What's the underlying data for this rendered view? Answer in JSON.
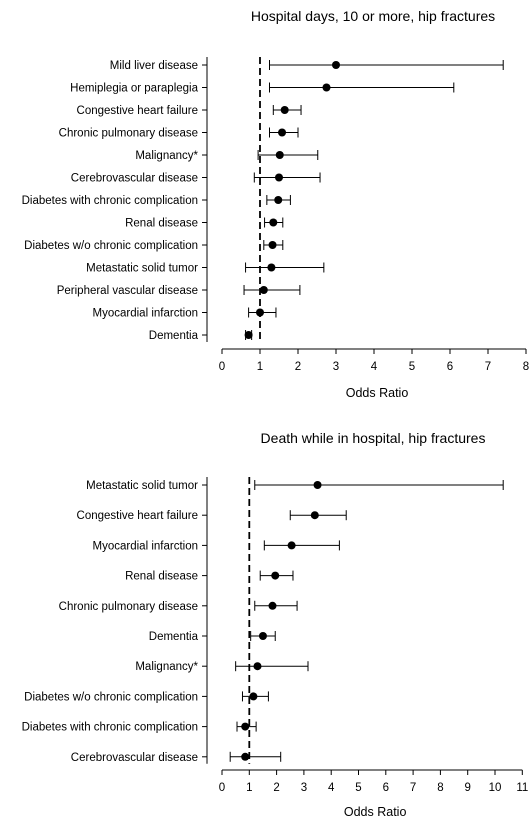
{
  "chart_data": [
    {
      "type": "scatter",
      "title": "Hospital days, 10 or more, hip fractures",
      "xlabel": "Odds Ratio",
      "ylabel": "",
      "xlim": [
        0,
        8
      ],
      "xticks": [
        0,
        1,
        2,
        3,
        4,
        5,
        6,
        7,
        8
      ],
      "reference_line": 1,
      "grid": false,
      "legend": "none",
      "categories": [
        "Mild liver disease",
        "Hemiplegia or paraplegia",
        "Congestive heart failure",
        "Chronic pulmonary disease",
        "Malignancy*",
        "Cerebrovascular disease",
        "Diabetes with chronic complication",
        "Renal disease",
        "Diabetes w/o chronic complication",
        "Metastatic solid tumor",
        "Peripheral vascular disease",
        "Myocardial infarction",
        "Dementia"
      ],
      "series": [
        {
          "values": [
            3.0,
            2.75,
            1.65,
            1.58,
            1.52,
            1.5,
            1.48,
            1.35,
            1.33,
            1.3,
            1.1,
            1.0,
            0.7
          ],
          "ci_lower": [
            1.25,
            1.25,
            1.35,
            1.25,
            0.95,
            0.85,
            1.18,
            1.12,
            1.1,
            0.62,
            0.58,
            0.7,
            0.62
          ],
          "ci_upper": [
            7.4,
            6.1,
            2.08,
            2.0,
            2.52,
            2.58,
            1.8,
            1.6,
            1.6,
            2.68,
            2.05,
            1.42,
            0.78
          ]
        }
      ]
    },
    {
      "type": "scatter",
      "title": "Death while in hospital, hip fractures",
      "xlabel": "Odds Ratio",
      "ylabel": "",
      "xlim": [
        0,
        11
      ],
      "xticks": [
        0,
        1,
        2,
        3,
        4,
        5,
        6,
        7,
        8,
        9,
        10,
        11
      ],
      "reference_line": 1,
      "grid": false,
      "legend": "none",
      "categories": [
        "Metastatic solid tumor",
        "Congestive heart failure",
        "Myocardial infarction",
        "Renal disease",
        "Chronic pulmonary disease",
        "Dementia",
        "Malignancy*",
        "Diabetes w/o chronic complication",
        "Diabetes with chronic complication",
        "Cerebrovascular disease"
      ],
      "series": [
        {
          "values": [
            3.5,
            3.4,
            2.55,
            1.95,
            1.85,
            1.5,
            1.3,
            1.15,
            0.85,
            0.85
          ],
          "ci_lower": [
            1.2,
            2.5,
            1.55,
            1.4,
            1.2,
            1.05,
            0.5,
            0.75,
            0.55,
            0.3
          ],
          "ci_upper": [
            10.3,
            4.55,
            4.3,
            2.6,
            2.75,
            1.95,
            3.15,
            1.7,
            1.25,
            2.15
          ]
        }
      ]
    }
  ]
}
